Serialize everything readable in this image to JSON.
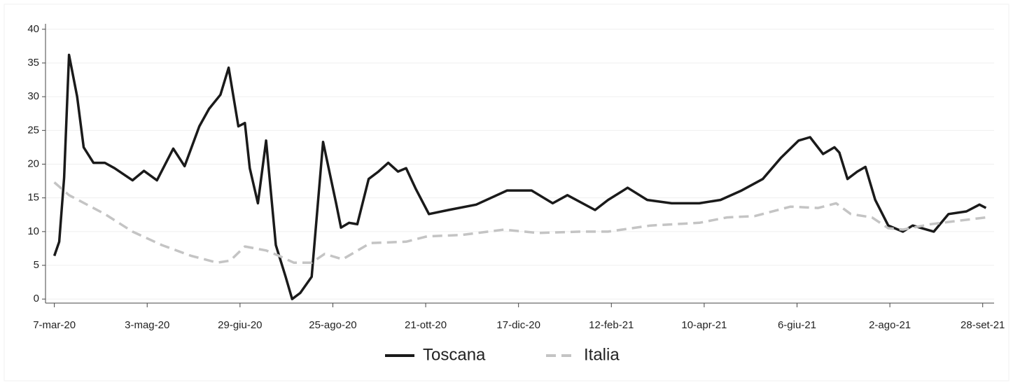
{
  "chart_data": {
    "type": "line",
    "xlim": [
      -5,
      577
    ],
    "ylim": [
      -0.6,
      40.6
    ],
    "xticks": [
      {
        "value": 0,
        "label": "7-mar-20"
      },
      {
        "value": 57,
        "label": "3-mag-20"
      },
      {
        "value": 114,
        "label": "29-giu-20"
      },
      {
        "value": 171,
        "label": "25-ago-20"
      },
      {
        "value": 228,
        "label": "21-ott-20"
      },
      {
        "value": 285,
        "label": "17-dic-20"
      },
      {
        "value": 342,
        "label": "12-feb-21"
      },
      {
        "value": 399,
        "label": "10-apr-21"
      },
      {
        "value": 456,
        "label": "6-giu-21"
      },
      {
        "value": 513,
        "label": "2-ago-21"
      },
      {
        "value": 570,
        "label": "28-set-21"
      }
    ],
    "yticks": [
      0,
      5,
      10,
      15,
      20,
      25,
      30,
      35,
      40
    ],
    "grid": true,
    "legend": "bottom",
    "series": [
      {
        "name": "Toscana",
        "color": "#1a1a1a",
        "dashed": false,
        "x": [
          0,
          3,
          6,
          9,
          14,
          18,
          24,
          31,
          37,
          48,
          55,
          63,
          73,
          80,
          89,
          95,
          102,
          107,
          113,
          117,
          120,
          125,
          130,
          136,
          142,
          146,
          151,
          158,
          165,
          173,
          176,
          181,
          186,
          193,
          199,
          205,
          211,
          216,
          222,
          230,
          242,
          259,
          278,
          293,
          306,
          315,
          332,
          340,
          352,
          364,
          379,
          396,
          409,
          422,
          435,
          446,
          457,
          464,
          472,
          479,
          482,
          487,
          493,
          498,
          504,
          512,
          521,
          527,
          540,
          549,
          560,
          568,
          572
        ],
        "values": [
          6.4,
          8.5,
          18,
          36.2,
          30,
          22.5,
          20.2,
          20.2,
          19.4,
          17.6,
          19,
          17.6,
          22.3,
          19.7,
          25.6,
          28.2,
          30.3,
          34.3,
          25.6,
          26.1,
          19.4,
          14.2,
          23.5,
          8,
          3.3,
          0,
          0.9,
          3.3,
          23.3,
          14.2,
          10.6,
          11.3,
          11.1,
          17.8,
          18.9,
          20.2,
          18.9,
          19.4,
          16.3,
          12.6,
          13.2,
          14,
          16.1,
          16.1,
          14.2,
          15.4,
          13.2,
          14.7,
          16.5,
          14.7,
          14.2,
          14.2,
          14.7,
          16.1,
          17.8,
          20.9,
          23.5,
          24,
          21.5,
          22.5,
          21.7,
          17.8,
          18.9,
          19.6,
          14.7,
          10.9,
          10,
          10.9,
          10,
          12.6,
          13,
          14,
          13.5
        ]
      },
      {
        "name": "Italia",
        "color": "#c4c4c4",
        "dashed": true,
        "x": [
          0,
          9,
          31,
          48,
          66,
          84,
          100,
          108,
          117,
          130,
          138,
          147,
          158,
          166,
          177,
          194,
          216,
          229,
          250,
          276,
          297,
          323,
          340,
          366,
          396,
          413,
          430,
          452,
          469,
          480,
          489,
          502,
          512,
          521,
          538,
          555,
          572
        ],
        "values": [
          17.3,
          15.4,
          12.6,
          10,
          8,
          6.4,
          5.4,
          5.7,
          7.8,
          7.2,
          6.4,
          5.4,
          5.4,
          6.7,
          5.9,
          8.3,
          8.5,
          9.3,
          9.5,
          10.3,
          9.8,
          10,
          10,
          10.9,
          11.3,
          12.1,
          12.3,
          13.7,
          13.5,
          14.2,
          12.6,
          12.1,
          10.5,
          10.3,
          11.1,
          11.6,
          12.1
        ]
      }
    ]
  }
}
